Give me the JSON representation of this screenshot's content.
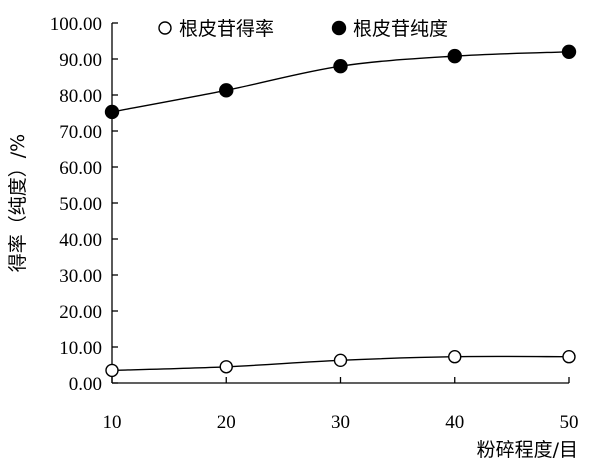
{
  "chart_data": {
    "type": "line",
    "title": "",
    "xlabel": "粉碎程度/目",
    "ylabel": "得率（纯度）/%",
    "x": [
      10,
      20,
      30,
      40,
      50
    ],
    "x_tick_labels": [
      "10",
      "20",
      "30",
      "40",
      "50"
    ],
    "xlim": [
      10,
      50
    ],
    "ylim": [
      0,
      100
    ],
    "y_tick_labels": [
      "0.00",
      "10.00",
      "20.00",
      "30.00",
      "40.00",
      "50.00",
      "60.00",
      "70.00",
      "80.00",
      "90.00",
      "100.00"
    ],
    "grid": false,
    "legend_position": "top",
    "series": [
      {
        "name": "根皮苷得率",
        "values": [
          3.5,
          4.5,
          6.3,
          7.3,
          7.3
        ],
        "marker": "open-circle",
        "color": "#000000"
      },
      {
        "name": "根皮苷纯度",
        "values": [
          75.3,
          81.3,
          88.0,
          90.8,
          92.0
        ],
        "marker": "filled-circle",
        "color": "#000000"
      }
    ]
  }
}
